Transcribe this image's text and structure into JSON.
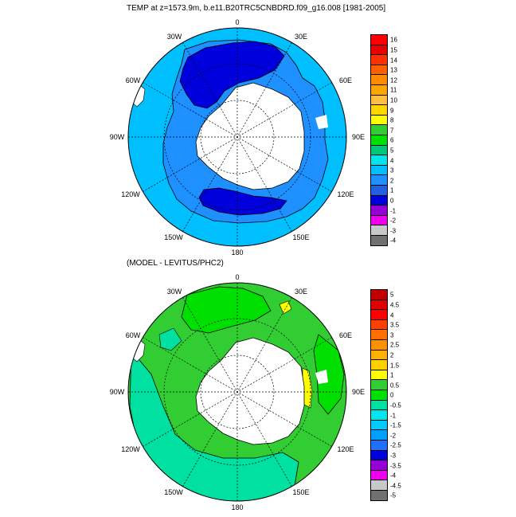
{
  "figure": {
    "title": "TEMP at z=1573.9m, b.e11.B20TRC5CNBDRD.f09_g16.008 [1981-2005]",
    "diff_title": "(MODEL - LEVITUS/PHC2)"
  },
  "map_top": {
    "lon_labels": [
      "0",
      "30E",
      "60E",
      "90E",
      "120E",
      "150E",
      "180",
      "150W",
      "120W",
      "90W",
      "60W",
      "30W"
    ],
    "colorbar": {
      "ticks": [
        "16",
        "15",
        "14",
        "13",
        "12",
        "11",
        "10",
        "9",
        "8",
        "7",
        "6",
        "5",
        "4",
        "3",
        "2",
        "1",
        "0",
        "-1",
        "-2",
        "-3",
        "-4"
      ],
      "colors": [
        "#ff0000",
        "#e80000",
        "#ff3000",
        "#ff6000",
        "#ff8c00",
        "#ffa500",
        "#ffc040",
        "#ffd700",
        "#ffff00",
        "#32cd32",
        "#00e000",
        "#00c878",
        "#00e5ee",
        "#00bfff",
        "#1e90ff",
        "#2060e0",
        "#0000dd",
        "#9400d3",
        "#ee00ee",
        "#c8c8c8",
        "#707070"
      ]
    }
  },
  "map_bottom": {
    "lon_labels": [
      "0",
      "30E",
      "60E",
      "90E",
      "120E",
      "150E",
      "180",
      "150W",
      "120W",
      "90W",
      "60W",
      "30W"
    ],
    "colorbar": {
      "ticks": [
        "5",
        "4.5",
        "4",
        "3.5",
        "3",
        "2.5",
        "2",
        "1.5",
        "1",
        "0.5",
        "0",
        "-0.5",
        "-1",
        "-1.5",
        "-2",
        "-2.5",
        "-3",
        "-3.5",
        "-4",
        "-4.5",
        "-5"
      ],
      "colors": [
        "#c00000",
        "#e00000",
        "#ff0000",
        "#ff4000",
        "#ff7000",
        "#ff9000",
        "#ffb000",
        "#ffd000",
        "#ffff00",
        "#32cd32",
        "#00e000",
        "#00e0a0",
        "#00e5ee",
        "#00ccff",
        "#00a0ff",
        "#1e70ff",
        "#0000dd",
        "#9400d3",
        "#ee00ee",
        "#c8c8c8",
        "#707070"
      ]
    }
  }
}
